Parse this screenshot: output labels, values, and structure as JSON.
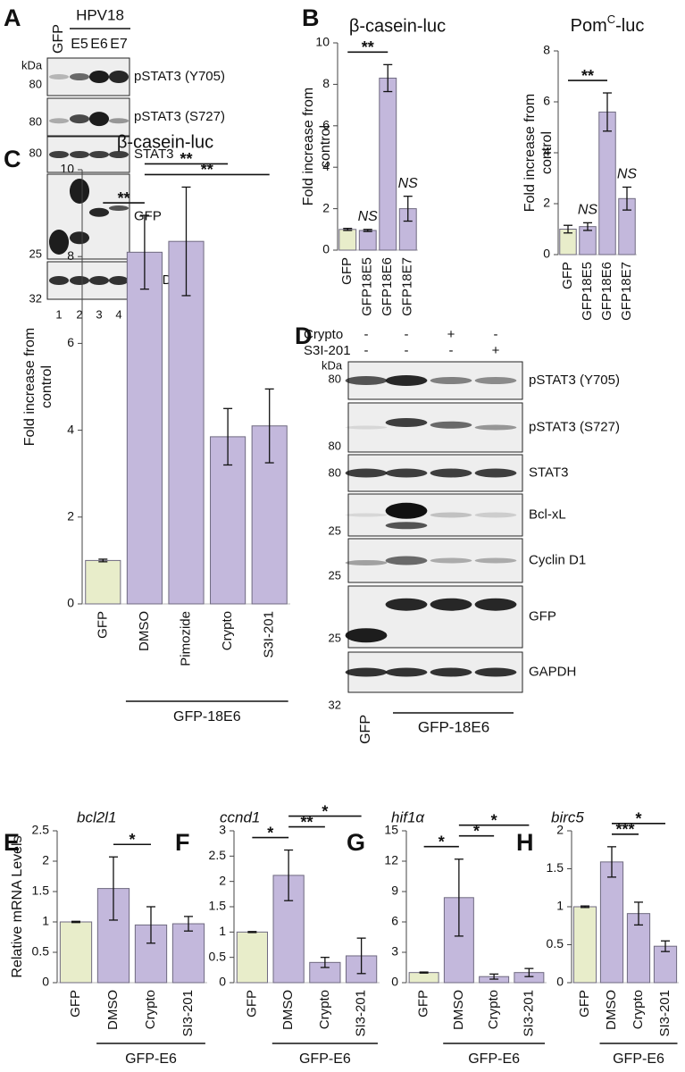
{
  "panels": [
    "A",
    "B",
    "C",
    "D",
    "E",
    "F",
    "G",
    "H"
  ],
  "blot_A": {
    "group": "HPV18",
    "lanes": [
      "GFP",
      "E5",
      "E6",
      "E7"
    ],
    "unit": "kDa",
    "lane_numbers": [
      "1",
      "2",
      "3",
      "4"
    ],
    "rows": [
      {
        "label": "pSTAT3 (Y705)",
        "marker": 80
      },
      {
        "label": "pSTAT3 (S727)",
        "marker": 80
      },
      {
        "label": "STAT3",
        "marker": 80
      },
      {
        "label": "GFP",
        "marker": 25
      },
      {
        "label": "GAPDH",
        "marker": 32
      }
    ]
  },
  "blot_D": {
    "treatments": [
      {
        "name": "Crypto",
        "signs": [
          "-",
          "-",
          "+",
          "-"
        ]
      },
      {
        "name": "S3I-201",
        "signs": [
          "-",
          "-",
          "-",
          "+"
        ]
      }
    ],
    "unit": "kDa",
    "rows": [
      {
        "label": "pSTAT3 (Y705)",
        "marker": 80
      },
      {
        "label": "pSTAT3 (S727)",
        "marker": 80
      },
      {
        "label": "STAT3",
        "marker": 80
      },
      {
        "label": "Bcl-xL",
        "marker": 25
      },
      {
        "label": "Cyclin D1",
        "marker": 25
      },
      {
        "label": "GFP",
        "marker": 25
      },
      {
        "label": "GAPDH",
        "marker": 32
      }
    ],
    "control": "GFP",
    "group": "GFP-18E6"
  },
  "chart_data": [
    {
      "type": "bar",
      "title": "β-casein-luc",
      "ylabel": [
        "Fold increase from",
        "control"
      ],
      "categories": [
        "GFP",
        "GFP18E5",
        "GFP18E6",
        "GFP18E7"
      ],
      "values": [
        1.0,
        0.95,
        8.3,
        2.0
      ],
      "errors": [
        0.05,
        0.05,
        0.65,
        0.6
      ],
      "colors": [
        "#e8edca",
        "#c3b8dc",
        "#c3b8dc",
        "#c3b8dc"
      ],
      "ylim": [
        0,
        10
      ],
      "yticks": [
        0,
        2,
        4,
        6,
        8,
        10
      ],
      "significance": [
        {
          "pair": [
            0,
            2
          ],
          "label": "**"
        }
      ],
      "ns": [
        {
          "index": 1,
          "label": "NS"
        },
        {
          "index": 3,
          "label": "NS"
        }
      ]
    },
    {
      "type": "bar",
      "title": "Pom",
      "title_sup": "C",
      "title_end": "-luc",
      "ylabel": [
        "Fold increase from",
        "control"
      ],
      "categories": [
        "GFP",
        "GFP18E5",
        "GFP18E6",
        "GFP18E7"
      ],
      "values": [
        1.0,
        1.1,
        5.6,
        2.2
      ],
      "errors": [
        0.15,
        0.15,
        0.75,
        0.45
      ],
      "colors": [
        "#e8edca",
        "#c3b8dc",
        "#c3b8dc",
        "#c3b8dc"
      ],
      "ylim": [
        0,
        8
      ],
      "yticks": [
        0,
        2,
        4,
        6,
        8
      ],
      "significance": [
        {
          "pair": [
            0,
            2
          ],
          "label": "**"
        }
      ],
      "ns": [
        {
          "index": 1,
          "label": "NS"
        },
        {
          "index": 3,
          "label": "NS"
        }
      ]
    },
    {
      "type": "bar",
      "title": "β-casein-luc",
      "ylabel": [
        "Fold increase from",
        "control"
      ],
      "categories": [
        "GFP",
        "DMSO",
        "Pimozide",
        "Crypto",
        "S3I-201"
      ],
      "values": [
        1.0,
        8.1,
        8.35,
        3.85,
        4.1
      ],
      "errors": [
        0.03,
        0.85,
        1.25,
        0.65,
        0.85
      ],
      "colors": [
        "#e8edca",
        "#c3b8dc",
        "#c3b8dc",
        "#c3b8dc",
        "#c3b8dc"
      ],
      "ylim": [
        0,
        10
      ],
      "yticks": [
        0,
        2,
        4,
        6,
        8,
        10
      ],
      "significance": [
        {
          "pair": [
            0,
            1
          ],
          "label": "**"
        },
        {
          "pair": [
            1,
            4
          ],
          "label": "**"
        },
        {
          "pair": [
            1,
            3
          ],
          "label": "**"
        }
      ],
      "group": {
        "label": "GFP-18E6",
        "span": [
          1,
          4
        ]
      }
    },
    {
      "type": "bar",
      "title": "bcl2l1",
      "italic": true,
      "ylabel": [
        "Relative mRNA Levels"
      ],
      "categories": [
        "GFP",
        "DMSO",
        "Crypto",
        "SI3-201"
      ],
      "values": [
        1.0,
        1.55,
        0.95,
        0.97
      ],
      "errors": [
        0.01,
        0.52,
        0.3,
        0.12
      ],
      "colors": [
        "#e8edca",
        "#c3b8dc",
        "#c3b8dc",
        "#c3b8dc"
      ],
      "ylim": [
        0,
        2.5
      ],
      "yticks": [
        0,
        0.5,
        1,
        1.5,
        2,
        2.5
      ],
      "significance": [
        {
          "pair": [
            1,
            2
          ],
          "label": "*"
        }
      ],
      "group": {
        "label": "GFP-E6",
        "span": [
          1,
          3
        ]
      }
    },
    {
      "type": "bar",
      "title": "ccnd1",
      "italic": true,
      "categories": [
        "GFP",
        "DMSO",
        "Crypto",
        "SI3-201"
      ],
      "values": [
        1.0,
        2.12,
        0.4,
        0.53
      ],
      "errors": [
        0.01,
        0.5,
        0.1,
        0.35
      ],
      "colors": [
        "#e8edca",
        "#c3b8dc",
        "#c3b8dc",
        "#c3b8dc"
      ],
      "ylim": [
        0,
        3
      ],
      "yticks": [
        0,
        0.5,
        1,
        1.5,
        2,
        2.5,
        3
      ],
      "significance": [
        {
          "pair": [
            0,
            1
          ],
          "label": "*"
        },
        {
          "pair": [
            1,
            2
          ],
          "label": "**"
        },
        {
          "pair": [
            1,
            3
          ],
          "label": "*"
        }
      ],
      "group": {
        "label": "GFP-E6",
        "span": [
          1,
          3
        ]
      }
    },
    {
      "type": "bar",
      "title": "hif1α",
      "italic": true,
      "categories": [
        "GFP",
        "DMSO",
        "Crypto",
        "SI3-201"
      ],
      "values": [
        1.0,
        8.4,
        0.6,
        1.0
      ],
      "errors": [
        0.05,
        3.8,
        0.25,
        0.4
      ],
      "colors": [
        "#e8edca",
        "#c3b8dc",
        "#c3b8dc",
        "#c3b8dc"
      ],
      "ylim": [
        0,
        15
      ],
      "yticks": [
        0,
        3,
        6,
        9,
        12,
        15
      ],
      "significance": [
        {
          "pair": [
            0,
            1
          ],
          "label": "*"
        },
        {
          "pair": [
            1,
            2
          ],
          "label": "*"
        },
        {
          "pair": [
            1,
            3
          ],
          "label": "*"
        }
      ],
      "group": {
        "label": "GFP-E6",
        "span": [
          1,
          3
        ]
      }
    },
    {
      "type": "bar",
      "title": "birc5",
      "italic": true,
      "categories": [
        "GFP",
        "DMSO",
        "Crypto",
        "SI3-201"
      ],
      "values": [
        1.0,
        1.59,
        0.91,
        0.48
      ],
      "errors": [
        0.01,
        0.2,
        0.15,
        0.07
      ],
      "colors": [
        "#e8edca",
        "#c3b8dc",
        "#c3b8dc",
        "#c3b8dc"
      ],
      "ylim": [
        0,
        2
      ],
      "yticks": [
        0,
        0.5,
        1,
        1.5,
        2
      ],
      "significance": [
        {
          "pair": [
            1,
            2
          ],
          "label": "***"
        },
        {
          "pair": [
            1,
            3
          ],
          "label": "*"
        }
      ],
      "group": {
        "label": "GFP-E6",
        "span": [
          1,
          3
        ]
      }
    }
  ]
}
